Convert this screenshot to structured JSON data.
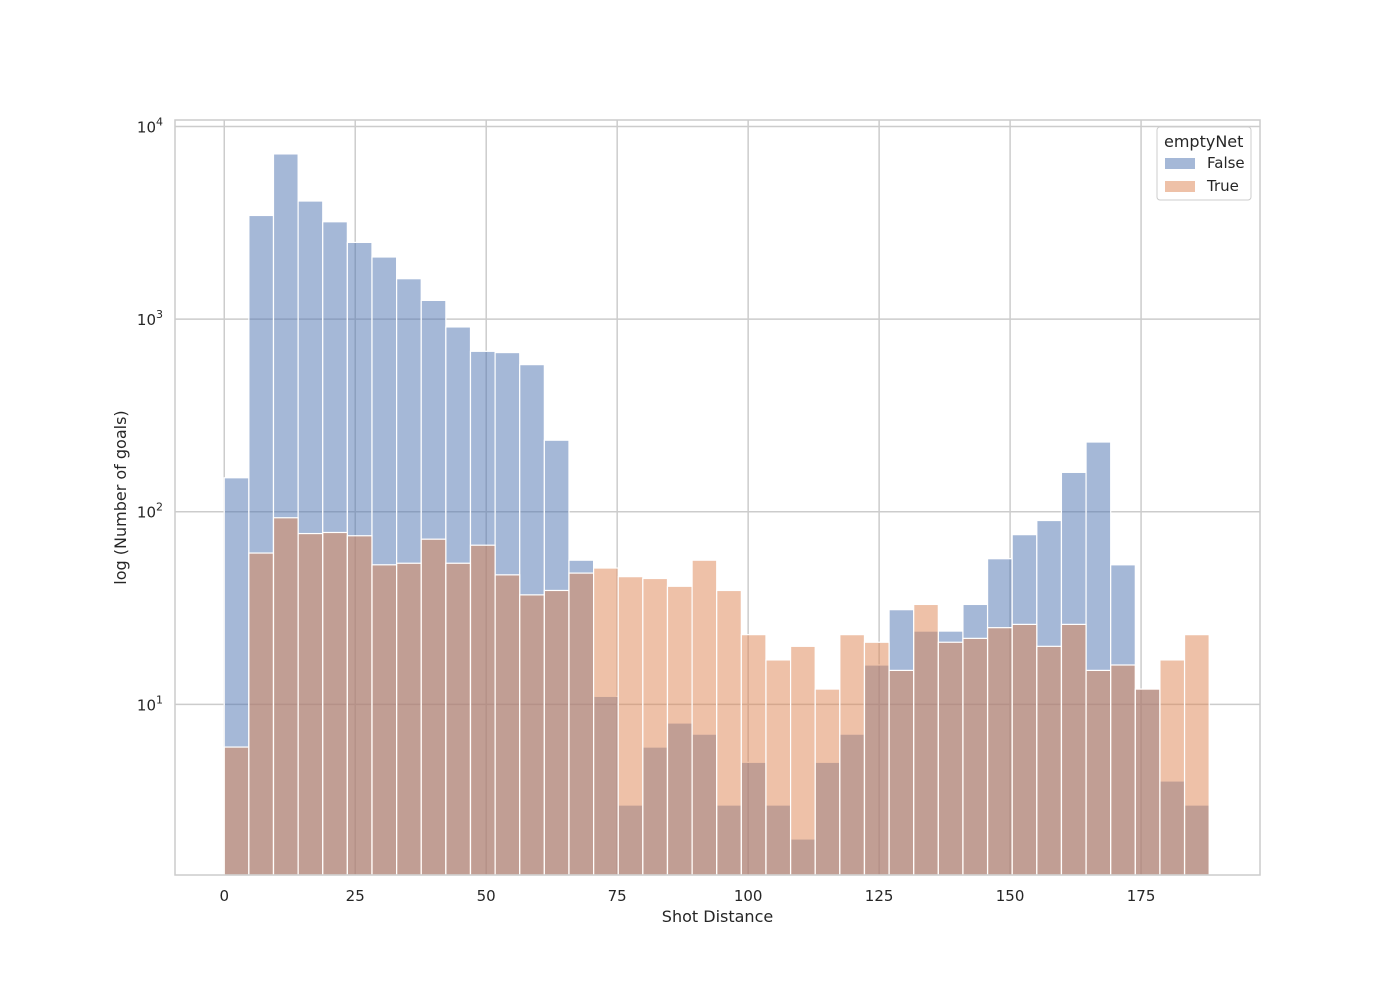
{
  "chart_data": {
    "type": "bar",
    "title": "",
    "xlabel": "Shot Distance",
    "ylabel": "log (Number of goals)",
    "xlim": [
      -9.4,
      197.7
    ],
    "ylim": [
      1.3,
      10800
    ],
    "yscale": "log",
    "xticks": [
      0,
      25,
      50,
      75,
      100,
      125,
      150,
      175
    ],
    "yticks": [
      10,
      100,
      1000,
      10000
    ],
    "ytick_labels": [
      {
        "base": "10",
        "exp": "1"
      },
      {
        "base": "10",
        "exp": "2"
      },
      {
        "base": "10",
        "exp": "3"
      },
      {
        "base": "10",
        "exp": "4"
      }
    ],
    "grid": true,
    "bin_width": 4.7,
    "bin_start": 0,
    "bins": 40,
    "legend": {
      "title": "emptyNet",
      "position": "top-right",
      "entries": [
        "False",
        "True"
      ]
    },
    "series": [
      {
        "name": "False",
        "color": "#4c72b0",
        "alpha": 0.5,
        "values": [
          150,
          3450,
          7200,
          4100,
          3200,
          2500,
          2100,
          1620,
          1250,
          910,
          680,
          670,
          580,
          235,
          56,
          11,
          3,
          6,
          8,
          7,
          3,
          5,
          3,
          2,
          5,
          7,
          16,
          31,
          24,
          24,
          33,
          57,
          76,
          90,
          160,
          230,
          53,
          12,
          4,
          3
        ]
      },
      {
        "name": "True",
        "color": "#dd8452",
        "alpha": 0.5,
        "values": [
          6,
          61,
          93,
          77,
          78,
          75,
          53,
          54,
          72,
          54,
          67,
          47,
          37,
          39,
          48,
          51,
          46,
          45,
          41,
          56,
          39,
          23,
          17,
          20,
          12,
          23,
          21,
          15,
          33,
          21,
          22,
          25,
          26,
          20,
          26,
          15,
          16,
          12,
          17,
          23
        ]
      }
    ]
  }
}
